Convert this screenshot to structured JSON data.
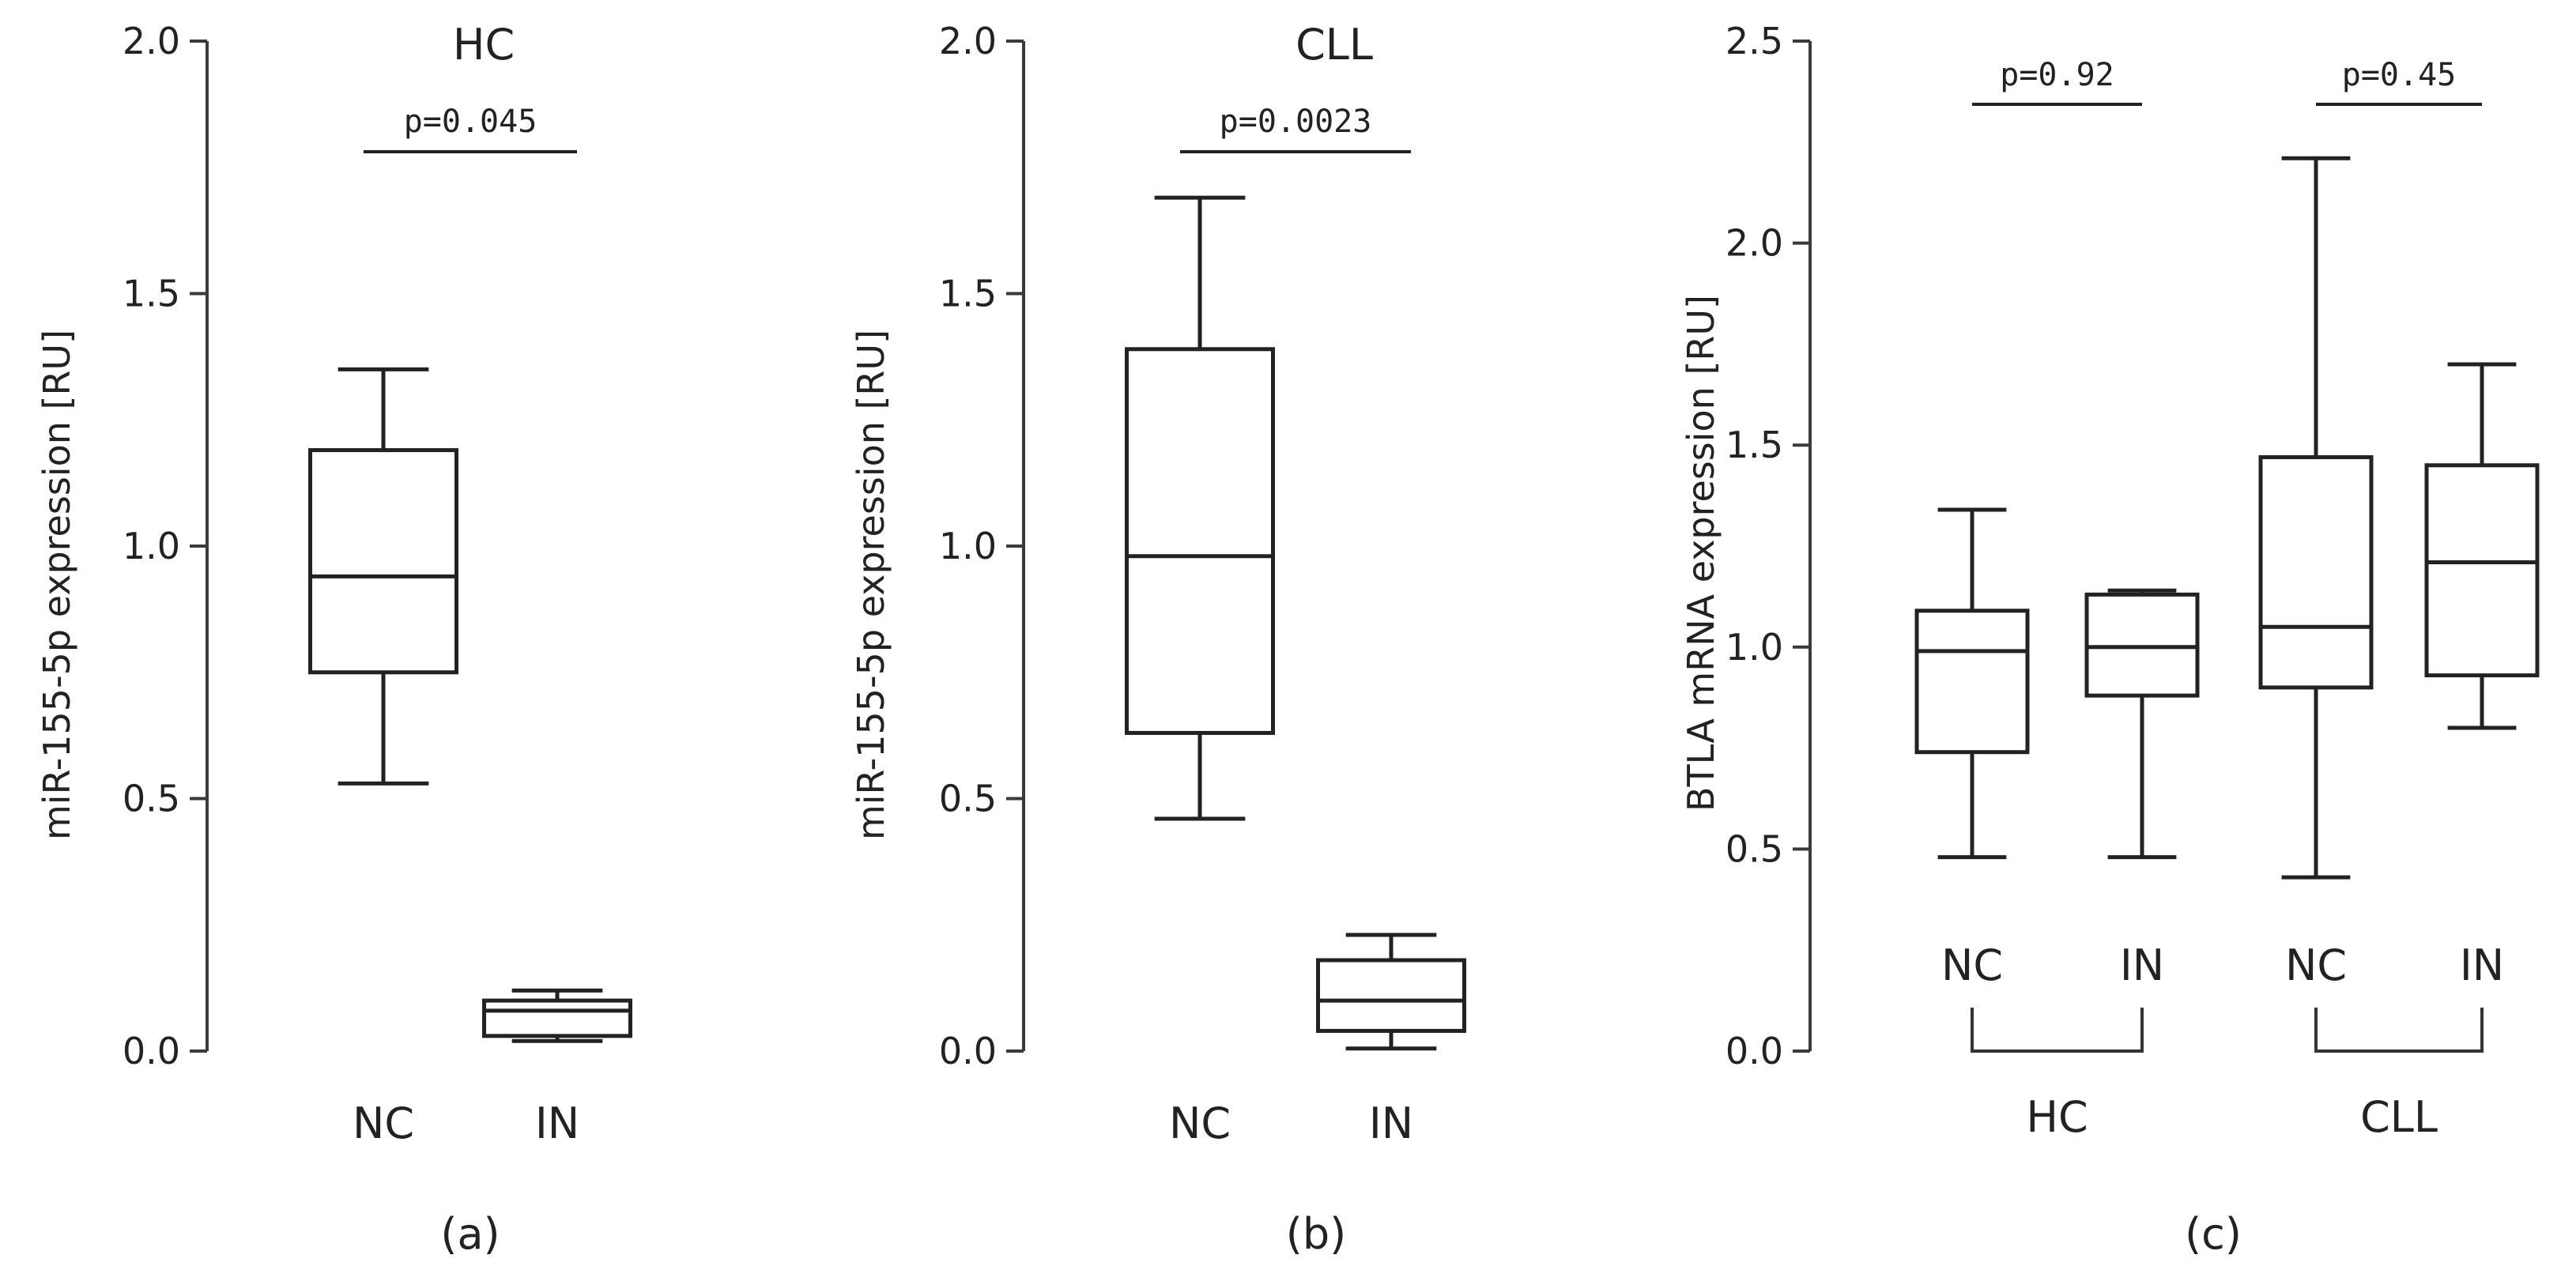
{
  "chart_data": [
    {
      "panel_label": "(a)",
      "type": "box",
      "title": "HC",
      "ylabel": "miR-155-5p expression  [RU]",
      "ylim": [
        0,
        2.0
      ],
      "yticks": [
        "0.0",
        "0.5",
        "1.0",
        "1.5",
        "2.0"
      ],
      "yticks_values": [
        0,
        0.5,
        1.0,
        1.5,
        2.0
      ],
      "categories": [
        "NC",
        "IN"
      ],
      "boxes": [
        {
          "name": "NC",
          "min": 0.53,
          "q1": 0.75,
          "median": 0.94,
          "q3": 1.19,
          "max": 1.35
        },
        {
          "name": "IN",
          "min": 0.02,
          "q1": 0.03,
          "median": 0.08,
          "q3": 0.1,
          "max": 0.12
        }
      ],
      "comparisons": [
        {
          "between": [
            "NC",
            "IN"
          ],
          "label": "p=0.045"
        }
      ]
    },
    {
      "panel_label": "(b)",
      "type": "box",
      "title": "CLL",
      "ylabel": "miR-155-5p expression  [RU]",
      "ylim": [
        0,
        2.0
      ],
      "yticks": [
        "0.0",
        "0.5",
        "1.0",
        "1.5",
        "2.0"
      ],
      "yticks_values": [
        0,
        0.5,
        1.0,
        1.5,
        2.0
      ],
      "categories": [
        "NC",
        "IN"
      ],
      "boxes": [
        {
          "name": "NC",
          "min": 0.46,
          "q1": 0.63,
          "median": 0.98,
          "q3": 1.39,
          "max": 1.69
        },
        {
          "name": "IN",
          "min": 0.005,
          "q1": 0.04,
          "median": 0.1,
          "q3": 0.18,
          "max": 0.23
        }
      ],
      "comparisons": [
        {
          "between": [
            "NC",
            "IN"
          ],
          "label": "p=0.0023"
        }
      ]
    },
    {
      "panel_label": "(c)",
      "type": "box",
      "title": "",
      "ylabel": "BTLA mRNA expression  [RU]",
      "ylim": [
        0,
        2.5
      ],
      "yticks": [
        "0.0",
        "0.5",
        "1.0",
        "1.5",
        "2.0",
        "2.5"
      ],
      "yticks_values": [
        0,
        0.5,
        1.0,
        1.5,
        2.0,
        2.5
      ],
      "categories": [
        "NC",
        "IN",
        "NC",
        "IN"
      ],
      "groups": [
        {
          "label": "HC",
          "members": [
            0,
            1
          ]
        },
        {
          "label": "CLL",
          "members": [
            2,
            3
          ]
        }
      ],
      "boxes": [
        {
          "name": "NC",
          "min": 0.48,
          "q1": 0.74,
          "median": 0.99,
          "q3": 1.09,
          "max": 1.34
        },
        {
          "name": "IN",
          "min": 0.48,
          "q1": 0.88,
          "median": 1.0,
          "q3": 1.13,
          "max": 1.14
        },
        {
          "name": "NC",
          "min": 0.43,
          "q1": 0.9,
          "median": 1.05,
          "q3": 1.47,
          "max": 2.21
        },
        {
          "name": "IN",
          "min": 0.8,
          "q1": 0.93,
          "median": 1.21,
          "q3": 1.45,
          "max": 1.7
        }
      ],
      "comparisons": [
        {
          "between": [
            0,
            1
          ],
          "label": "p=0.92"
        },
        {
          "between": [
            2,
            3
          ],
          "label": "p=0.45"
        }
      ]
    }
  ]
}
